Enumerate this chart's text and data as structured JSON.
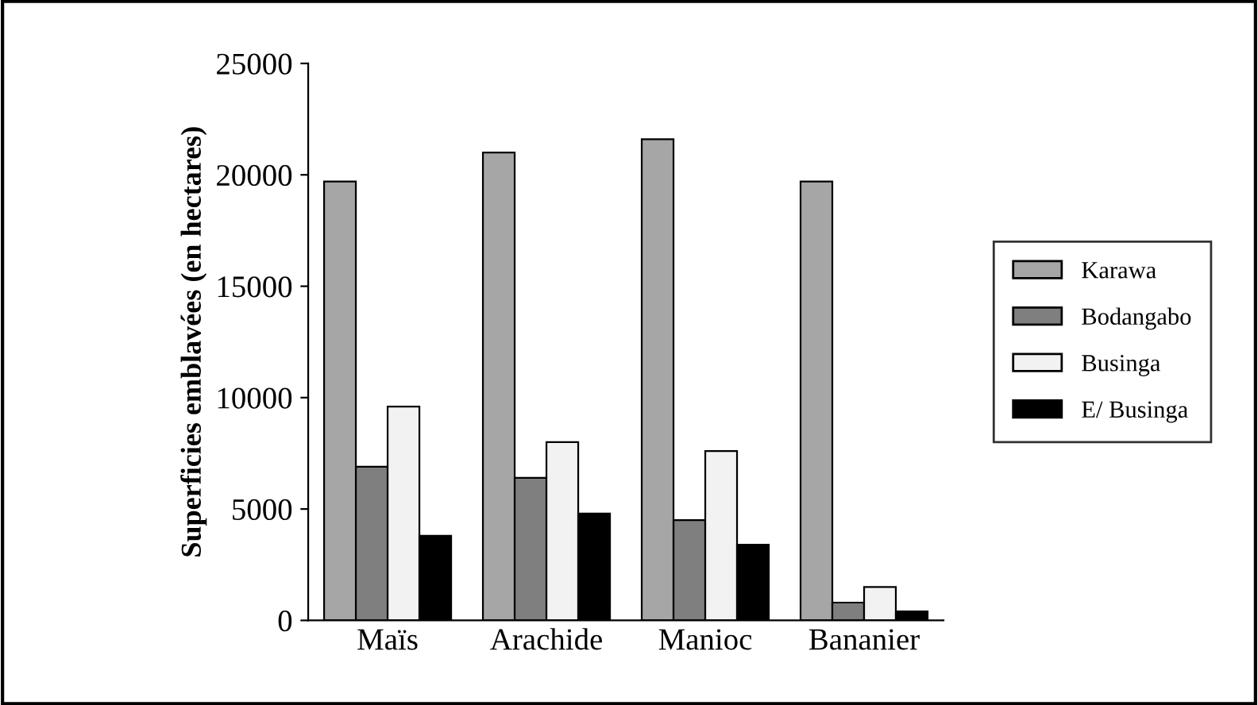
{
  "chart_data": {
    "type": "bar",
    "ylabel": "Superficies emblavées (en hectares)",
    "categories": [
      "Maïs",
      "Arachide",
      "Manioc",
      "Bananier"
    ],
    "series": [
      {
        "name": "Karawa",
        "color": "#a6a6a6",
        "values": [
          19700,
          21000,
          21600,
          19700
        ]
      },
      {
        "name": "Bodangabo",
        "color": "#7f7f7f",
        "values": [
          6900,
          6400,
          4500,
          800
        ]
      },
      {
        "name": "Businga",
        "color": "#f2f2f2",
        "values": [
          9600,
          8000,
          7600,
          1500
        ]
      },
      {
        "name": "E/ Businga",
        "color": "#000000",
        "values": [
          3800,
          4800,
          3400,
          400
        ]
      }
    ],
    "ylim": [
      0,
      25000
    ],
    "yticks": [
      0,
      5000,
      10000,
      15000,
      20000,
      25000
    ],
    "grid": false,
    "legend": "right"
  }
}
